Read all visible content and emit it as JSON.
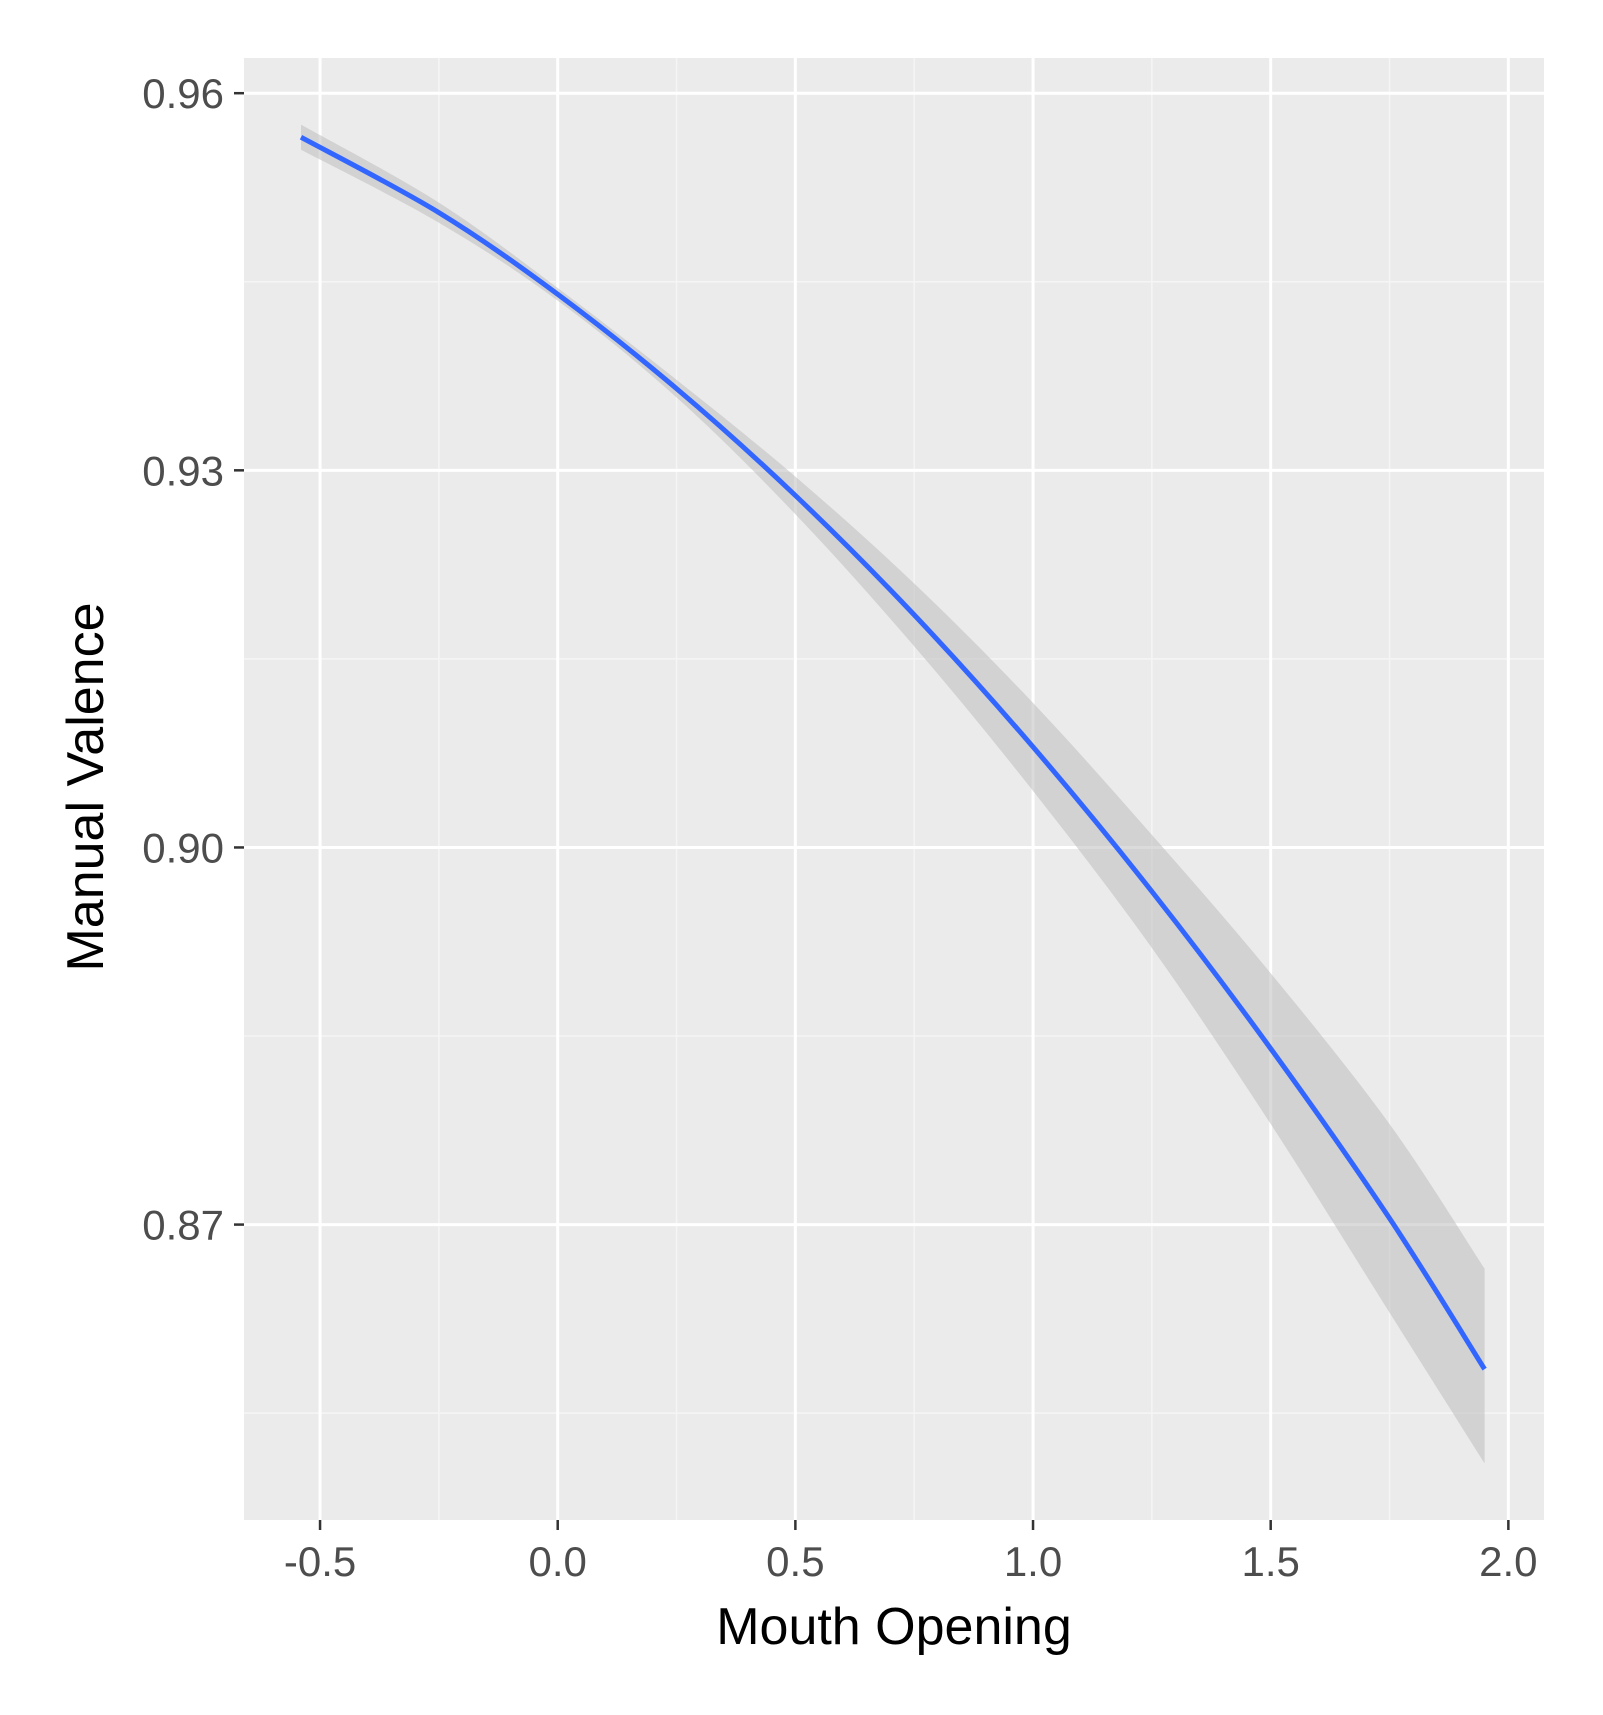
{
  "chart_data": {
    "type": "line",
    "title": "",
    "xlabel": "Mouth Opening",
    "ylabel": "Manual Valence",
    "xlim": [
      -0.66,
      2.075
    ],
    "ylim": [
      0.8465,
      0.9628
    ],
    "x_ticks": [
      -0.5,
      0.0,
      0.5,
      1.0,
      1.5,
      2.0
    ],
    "x_tick_labels": [
      "-0.5",
      "0.0",
      "0.5",
      "1.0",
      "1.5",
      "2.0"
    ],
    "y_ticks": [
      0.87,
      0.9,
      0.93,
      0.96
    ],
    "y_tick_labels": [
      "0.87",
      "0.90",
      "0.93",
      "0.96"
    ],
    "grid": true,
    "legend": "none",
    "series": [
      {
        "x": [
          -0.54,
          -0.25,
          0.0,
          0.25,
          0.5,
          0.75,
          1.0,
          1.25,
          1.5,
          1.75,
          1.95
        ],
        "y": [
          0.9565,
          0.9505,
          0.944,
          0.9365,
          0.928,
          0.9185,
          0.908,
          0.8965,
          0.884,
          0.8705,
          0.8585
        ],
        "ci_lower": [
          0.9555,
          0.9497,
          0.9435,
          0.9358,
          0.9265,
          0.916,
          0.9045,
          0.892,
          0.878,
          0.863,
          0.851
        ],
        "ci_upper": [
          0.9575,
          0.9513,
          0.9445,
          0.9372,
          0.9295,
          0.921,
          0.9115,
          0.901,
          0.89,
          0.878,
          0.8665
        ]
      }
    ],
    "colors": {
      "line": "#3366ff",
      "ribbon": "#bdbdbd",
      "panel": "#ebebeb",
      "grid_major": "#ffffff",
      "grid_minor": "#f5f5f5",
      "tick_text": "#4d4d4d",
      "axis_title": "#000000"
    }
  }
}
